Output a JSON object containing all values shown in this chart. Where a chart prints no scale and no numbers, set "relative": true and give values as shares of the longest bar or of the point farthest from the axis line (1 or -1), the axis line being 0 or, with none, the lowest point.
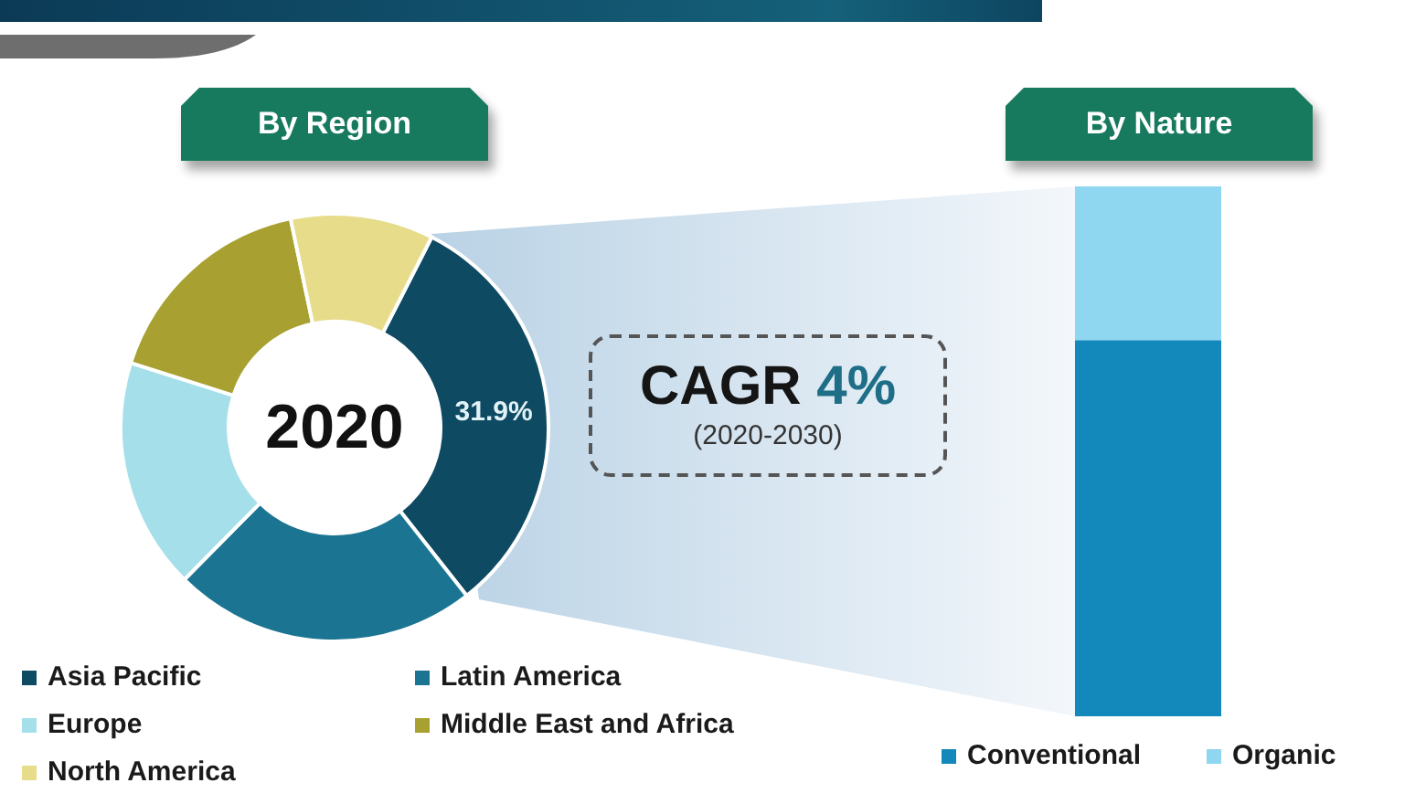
{
  "chart_data": [
    {
      "type": "donut",
      "title": "By Region",
      "categories": [
        "Asia Pacific",
        "Latin America",
        "Europe",
        "Middle East and Africa",
        "North America"
      ],
      "values": [
        31.9,
        23,
        17.5,
        16.8,
        10.8
      ],
      "colors": [
        "#0e4a62",
        "#1b7592",
        "#a5dfea",
        "#a8a030",
        "#e6dc8a"
      ],
      "value_labels": [
        "31.9%",
        null,
        null,
        null,
        null
      ],
      "legend": "bottom",
      "annotations": [
        "2020",
        "CAGR 4%",
        "(2020-2030)"
      ]
    },
    {
      "type": "bar",
      "title": "By Nature",
      "categories": [
        null
      ],
      "series": [
        {
          "name": "Conventional",
          "color": "#1388bb",
          "values": [
            0.71
          ]
        },
        {
          "name": "Organic",
          "color": "#8fd7f0",
          "values": [
            0.29
          ]
        }
      ],
      "stacked": true,
      "relative": true,
      "legend": "bottom",
      "tick_labels": false
    }
  ]
}
